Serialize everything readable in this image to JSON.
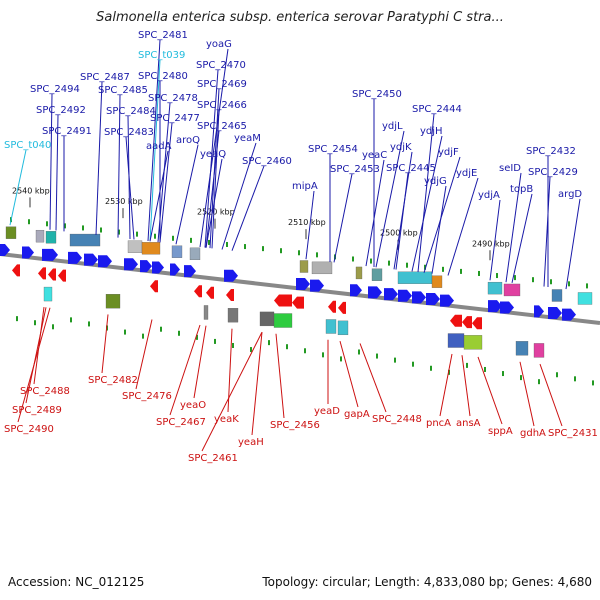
{
  "title": "Salmonella enterica subsp. enterica serovar Paratyphi C stra...",
  "footer": {
    "accession": "Accession: NC_012125",
    "topology": "Topology: circular; Length: 4,833,080 bp; Genes: 4,680"
  },
  "colors": {
    "forward_label": "#1a1aa8",
    "reverse_label": "#cc1111",
    "rna_label": "#22bbdd",
    "forward_gene": "#1a1aee",
    "reverse_gene": "#ee1111",
    "backbone": "#888888",
    "tick": "#229922"
  },
  "ticks": [
    "2540 kbp",
    "2530 kbp",
    "2520 kbp",
    "2510 kbp",
    "2500 kbp",
    "2490 kbp"
  ],
  "top_labels": [
    {
      "text": "SPC_2481",
      "type": "cds"
    },
    {
      "text": "SPC_t039",
      "type": "rna"
    },
    {
      "text": "yoaG",
      "type": "cds"
    },
    {
      "text": "SPC_2470",
      "type": "cds"
    },
    {
      "text": "SPC_2487",
      "type": "cds"
    },
    {
      "text": "SPC_2480",
      "type": "cds"
    },
    {
      "text": "SPC_2469",
      "type": "cds"
    },
    {
      "text": "SPC_2494",
      "type": "cds"
    },
    {
      "text": "SPC_2485",
      "type": "cds"
    },
    {
      "text": "SPC_2478",
      "type": "cds"
    },
    {
      "text": "SPC_2466",
      "type": "cds"
    },
    {
      "text": "SPC_2492",
      "type": "cds"
    },
    {
      "text": "SPC_2484",
      "type": "cds"
    },
    {
      "text": "SPC_2477",
      "type": "cds"
    },
    {
      "text": "SPC_2491",
      "type": "cds"
    },
    {
      "text": "SPC_2483",
      "type": "cds"
    },
    {
      "text": "SPC_2465",
      "type": "cds"
    },
    {
      "text": "aroQ",
      "type": "cds"
    },
    {
      "text": "yeaM",
      "type": "cds"
    },
    {
      "text": "SPC_t040",
      "type": "rna"
    },
    {
      "text": "aadA",
      "type": "cds"
    },
    {
      "text": "yeaQ",
      "type": "cds"
    },
    {
      "text": "SPC_2460",
      "type": "cds"
    },
    {
      "text": "SPC_2450",
      "type": "cds"
    },
    {
      "text": "SPC_2444",
      "type": "cds"
    },
    {
      "text": "ydjL",
      "type": "cds"
    },
    {
      "text": "ydjH",
      "type": "cds"
    },
    {
      "text": "SPC_2454",
      "type": "cds"
    },
    {
      "text": "ydjK",
      "type": "cds"
    },
    {
      "text": "ydjF",
      "type": "cds"
    },
    {
      "text": "yeaC",
      "type": "cds"
    },
    {
      "text": "SPC_2432",
      "type": "cds"
    },
    {
      "text": "SPC_2453",
      "type": "cds"
    },
    {
      "text": "SPC_2445",
      "type": "cds"
    },
    {
      "text": "seID",
      "type": "cds"
    },
    {
      "text": "ydjG",
      "type": "cds"
    },
    {
      "text": "ydjE",
      "type": "cds"
    },
    {
      "text": "SPC_2429",
      "type": "cds"
    },
    {
      "text": "mipA",
      "type": "cds"
    },
    {
      "text": "topB",
      "type": "cds"
    },
    {
      "text": "ydjA",
      "type": "cds"
    },
    {
      "text": "argD",
      "type": "cds"
    }
  ],
  "bottom_labels": [
    "SPC_2482",
    "SPC_2476",
    "SPC_2488",
    "SPC_2489",
    "SPC_2490",
    "yeaO",
    "SPC_2467",
    "yeaK",
    "SPC_2461",
    "yeaH",
    "SPC_2456",
    "yeaD",
    "gapA",
    "SPC_2448",
    "pncA",
    "ansA",
    "sppA",
    "gdhA",
    "SPC_2431"
  ]
}
